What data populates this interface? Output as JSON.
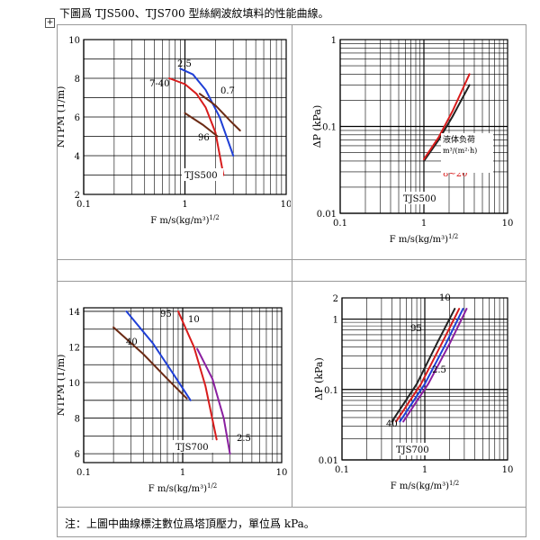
{
  "heading": "下圖爲 TJS500、TJS700 型絲網波紋填料的性能曲線。",
  "expand_icon": "plus-box-icon",
  "note": "注：上圖中曲線標注數位爲塔頂壓力，單位爲 kPa。",
  "chart_data": [
    {
      "type": "line",
      "model": "TJS500",
      "xlabel": "F    m/s(kg/m³)^1/2",
      "ylabel": "NTPM  (1/m)",
      "xscale": "log",
      "xlim": [
        0.1,
        10
      ],
      "xticks": [
        "0.1",
        "1",
        "10"
      ],
      "yscale": "linear",
      "ylim": [
        2,
        10
      ],
      "yticks": [
        "2",
        "4",
        "6",
        "8",
        "10"
      ],
      "grid": true,
      "series": [
        {
          "name": "2.5",
          "color": "#1f3fd6",
          "x": [
            0.9,
            1.2,
            1.6,
            2.2,
            3.0
          ],
          "y": [
            8.5,
            8.2,
            7.4,
            6.0,
            4.0
          ]
        },
        {
          "name": "7-40",
          "color": "#d81c1c",
          "x": [
            0.7,
            1.0,
            1.3,
            1.6,
            2.0,
            2.4
          ],
          "y": [
            8.0,
            7.7,
            7.2,
            6.5,
            5.2,
            3.0
          ]
        },
        {
          "name": "0.7",
          "color": "#6b2a14",
          "x": [
            1.4,
            2.0,
            2.8,
            3.5
          ],
          "y": [
            7.2,
            6.6,
            5.8,
            5.3
          ]
        },
        {
          "name": "96",
          "color": "#6b2a14",
          "x": [
            1.0,
            1.5,
            2.1
          ],
          "y": [
            6.2,
            5.6,
            5.0
          ]
        }
      ],
      "annotations": [
        "TJS500"
      ]
    },
    {
      "type": "line",
      "model": "TJS500",
      "xlabel": "F    m/s(kg/m³)^1/2",
      "ylabel": "ΔP  (kPa)",
      "xscale": "log",
      "xlim": [
        0.1,
        10
      ],
      "xticks": [
        "0.1",
        "1",
        "10"
      ],
      "yscale": "log",
      "ylim": [
        0.01,
        1
      ],
      "yticks": [
        "0.01",
        "0.1",
        "1"
      ],
      "grid": true,
      "series": [
        {
          "name": "1~8",
          "color": "#222222",
          "x": [
            1.0,
            1.5,
            2.2,
            3.5
          ],
          "y": [
            0.04,
            0.07,
            0.13,
            0.3
          ]
        },
        {
          "name": "8~20",
          "color": "#d81c1c",
          "x": [
            1.0,
            1.5,
            2.2,
            3.5
          ],
          "y": [
            0.042,
            0.075,
            0.15,
            0.4
          ]
        }
      ],
      "legend_title": "液体负荷",
      "legend_unit": "m³/(m²·h)",
      "annotations": [
        "TJS500"
      ]
    },
    {
      "type": "line",
      "model": "TJS700",
      "xlabel": "F    m/s(kg/m³)^1/2",
      "ylabel": "NTPM  (1/m)",
      "xscale": "log",
      "xlim": [
        0.1,
        10
      ],
      "xticks": [
        "0.1",
        "1",
        "10"
      ],
      "yscale": "linear",
      "ylim": [
        5.5,
        14.2
      ],
      "yticks": [
        "6",
        "8",
        "10",
        "12",
        "14"
      ],
      "grid": true,
      "series": [
        {
          "name": "95",
          "color": "#6b2a14",
          "x": [
            0.2,
            0.4,
            0.7,
            1.1
          ],
          "y": [
            13.1,
            11.6,
            10.2,
            9.1
          ]
        },
        {
          "name": "40",
          "color": "#1f3fd6",
          "x": [
            0.27,
            0.5,
            0.8,
            1.2
          ],
          "y": [
            14.0,
            12.2,
            10.5,
            9.0
          ]
        },
        {
          "name": "10",
          "color": "#d81c1c",
          "x": [
            0.9,
            1.3,
            1.7,
            2.2
          ],
          "y": [
            14.0,
            12.0,
            9.8,
            6.8
          ]
        },
        {
          "name": "2.5",
          "color": "#8a1fa0",
          "x": [
            1.4,
            2.0,
            2.6,
            3.0
          ],
          "y": [
            11.9,
            10.2,
            8.0,
            6.0
          ]
        }
      ],
      "annotations": [
        "TJS700"
      ]
    },
    {
      "type": "line",
      "model": "TJS700",
      "xlabel": "F    m/s(kg/m³)^1/2",
      "ylabel": "ΔP  (kPa)",
      "xscale": "log",
      "xlim": [
        0.1,
        10
      ],
      "xticks": [
        "0.1",
        "1",
        "10"
      ],
      "yscale": "log",
      "ylim": [
        0.01,
        2
      ],
      "yticks": [
        "0.01",
        "0.1",
        "1",
        "2"
      ],
      "grid": true,
      "series": [
        {
          "name": "10",
          "color": "#222222",
          "x": [
            0.4,
            0.8,
            1.4,
            2.3
          ],
          "y": [
            0.035,
            0.12,
            0.45,
            1.4
          ]
        },
        {
          "name": "95",
          "color": "#d81c1c",
          "x": [
            0.45,
            0.9,
            1.6,
            2.6
          ],
          "y": [
            0.035,
            0.12,
            0.45,
            1.4
          ]
        },
        {
          "name": "40",
          "color": "#1f3fd6",
          "x": [
            0.5,
            1.0,
            1.8,
            2.9
          ],
          "y": [
            0.035,
            0.12,
            0.45,
            1.4
          ]
        },
        {
          "name": "2.5",
          "color": "#8a1fa0",
          "x": [
            0.55,
            1.1,
            2.0,
            3.2
          ],
          "y": [
            0.035,
            0.12,
            0.45,
            1.4
          ]
        }
      ],
      "annotations": [
        "TJS700"
      ]
    }
  ]
}
